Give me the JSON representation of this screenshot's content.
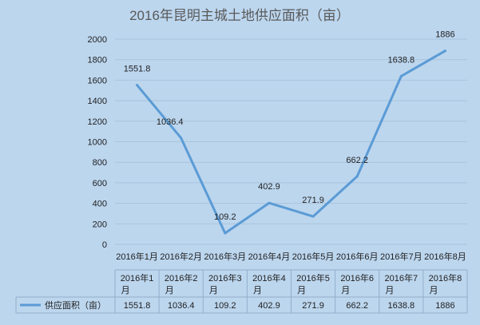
{
  "chart_data": {
    "type": "line",
    "title": "2016年昆明主城土地供应面积（亩）",
    "categories": [
      "2016年1月",
      "2016年2月",
      "2016年3月",
      "2016年4月",
      "2016年5月",
      "2016年6月",
      "2016年7月",
      "2016年8月"
    ],
    "series": [
      {
        "name": "供应面积（亩）",
        "values": [
          1551.8,
          1036.4,
          109.2,
          402.9,
          271.9,
          662.2,
          1638.8,
          1886
        ],
        "color": "#5b9bd5"
      }
    ],
    "ylim": [
      0,
      2000
    ],
    "yticks": [
      0,
      200,
      400,
      600,
      800,
      1000,
      1200,
      1400,
      1600,
      1800,
      2000
    ],
    "grid": true,
    "data_table": true,
    "colors": {
      "background": "#bcd6ee",
      "series": "#5b9bd5"
    }
  }
}
